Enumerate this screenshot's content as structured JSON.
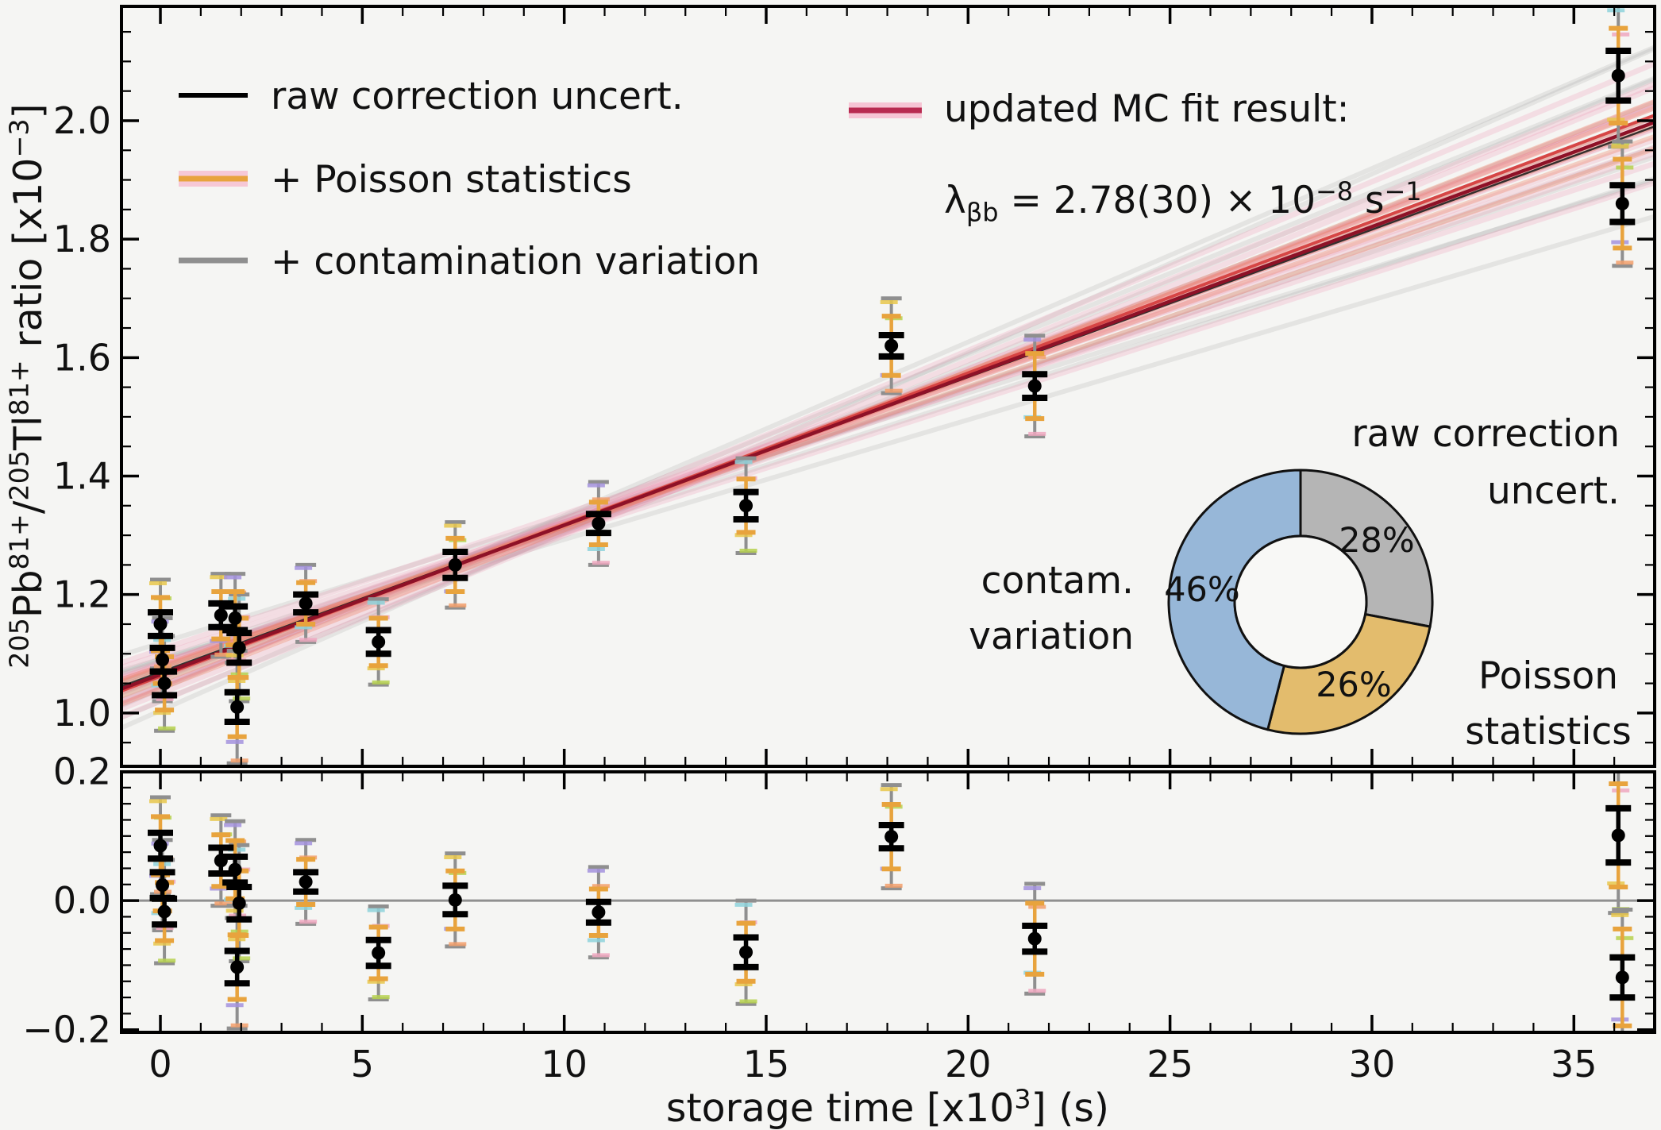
{
  "chart_data": {
    "type": "scatter",
    "title": "",
    "xlabel_parts": [
      {
        "t": "storage time [x10"
      },
      {
        "t": "3",
        "sup": true
      },
      {
        "t": "] (s)"
      }
    ],
    "ylabel_parts": [
      {
        "t": "205",
        "sup": true
      },
      {
        "t": "Pb"
      },
      {
        "t": "81+",
        "sup": true
      },
      {
        "t": "/"
      },
      {
        "t": "205",
        "sup": true
      },
      {
        "t": "Tl"
      },
      {
        "t": "81+",
        "sup": true
      },
      {
        "t": " ratio [x10"
      },
      {
        "t": "−3",
        "sup": true
      },
      {
        "t": "]"
      }
    ],
    "xlim": [
      -0.9635,
      37.0
    ],
    "ylim_main": [
      0.91,
      2.193
    ],
    "ylim_res": [
      -0.204,
      0.1994
    ],
    "x_major_ticks": [
      0,
      5,
      10,
      15,
      20,
      25,
      30,
      35
    ],
    "x_tick_labels": [
      "0",
      "5",
      "10",
      "15",
      "20",
      "25",
      "30",
      "35"
    ],
    "x_minor_step": 1,
    "y_major_ticks_main": [
      1.0,
      1.2,
      1.4,
      1.6,
      1.8,
      2.0
    ],
    "y_tick_labels_main": [
      "1.0",
      "1.2",
      "1.4",
      "1.6",
      "1.8",
      "2.0"
    ],
    "y_minor_step_main": 0.05,
    "y_major_ticks_res": [
      -0.2,
      0.0,
      0.2
    ],
    "y_tick_labels_res": [
      "−0.2",
      "0.0",
      "0.2"
    ],
    "y_minor_step_res": 0.025,
    "grid": "off",
    "fit": {
      "slope": 0.0252,
      "intercept": 1.065,
      "result_value": "2.78(30)",
      "result_units_exp": "× 10⁻⁸ s⁻¹"
    },
    "points": [
      {
        "x": 0.0,
        "y": 1.15,
        "res": 0.085,
        "err_black": 0.02,
        "err_poisson": 0.045,
        "err_contam": 0.075
      },
      {
        "x": 0.05,
        "y": 1.09,
        "res": 0.024,
        "err_black": 0.02,
        "err_poisson": 0.04,
        "err_contam": 0.07
      },
      {
        "x": 0.1,
        "y": 1.05,
        "res": -0.017,
        "err_black": 0.02,
        "err_poisson": 0.045,
        "err_contam": 0.08
      },
      {
        "x": 1.5,
        "y": 1.165,
        "res": 0.062,
        "err_black": 0.02,
        "err_poisson": 0.04,
        "err_contam": 0.07
      },
      {
        "x": 1.85,
        "y": 1.16,
        "res": 0.048,
        "err_black": 0.02,
        "err_poisson": 0.045,
        "err_contam": 0.075
      },
      {
        "x": 1.95,
        "y": 1.11,
        "res": -0.004,
        "err_black": 0.025,
        "err_poisson": 0.05,
        "err_contam": 0.09
      },
      {
        "x": 1.9,
        "y": 1.01,
        "res": -0.103,
        "err_black": 0.025,
        "err_poisson": 0.05,
        "err_contam": 0.095
      },
      {
        "x": 3.6,
        "y": 1.185,
        "res": 0.029,
        "err_black": 0.015,
        "err_poisson": 0.035,
        "err_contam": 0.065
      },
      {
        "x": 5.4,
        "y": 1.12,
        "res": -0.081,
        "err_black": 0.02,
        "err_poisson": 0.04,
        "err_contam": 0.072
      },
      {
        "x": 7.3,
        "y": 1.25,
        "res": 0.001,
        "err_black": 0.022,
        "err_poisson": 0.045,
        "err_contam": 0.072
      },
      {
        "x": 10.85,
        "y": 1.32,
        "res": -0.018,
        "err_black": 0.016,
        "err_poisson": 0.036,
        "err_contam": 0.07
      },
      {
        "x": 14.5,
        "y": 1.35,
        "res": -0.08,
        "err_black": 0.023,
        "err_poisson": 0.045,
        "err_contam": 0.08
      },
      {
        "x": 18.1,
        "y": 1.62,
        "res": 0.099,
        "err_black": 0.018,
        "err_poisson": 0.05,
        "err_contam": 0.08
      },
      {
        "x": 21.65,
        "y": 1.552,
        "res": -0.059,
        "err_black": 0.02,
        "err_poisson": 0.055,
        "err_contam": 0.085
      },
      {
        "x": 36.1,
        "y": 2.076,
        "res": 0.101,
        "err_black": 0.042,
        "err_poisson": 0.08,
        "err_contam": 0.12
      },
      {
        "x": 36.2,
        "y": 1.86,
        "res": -0.119,
        "err_black": 0.031,
        "err_poisson": 0.075,
        "err_contam": 0.105
      }
    ],
    "legend_main": {
      "items": [
        {
          "label": "raw correction uncert.",
          "line_color": "#000000",
          "band_color": null
        },
        {
          "label": "+ Poisson statistics",
          "line_color": "#e8a33d",
          "band_color": "#f6bfd0"
        },
        {
          "label": "+ contamination variation",
          "line_color": "#8f8f8f",
          "band_color": null
        }
      ]
    },
    "legend_fit": {
      "title": "updated MC fit result:",
      "lambda_parts": [
        {
          "t": "λ"
        },
        {
          "t": "βb",
          "sub": true
        },
        {
          "t": " = 2.78(30) × 10"
        },
        {
          "t": "−8",
          "sup": true
        },
        {
          "t": " s"
        },
        {
          "t": "−1",
          "sup": true
        }
      ],
      "line_color": "#b82a50",
      "band_color": "#f6bfd0"
    },
    "donut": {
      "slices": [
        {
          "name": "raw correction uncert.",
          "pct": 28,
          "pct_label": "28%",
          "color": "#b5b5b5",
          "pct_color": "#1a1a1a",
          "fringe_color": "#cdd65f"
        },
        {
          "name": "Poisson statistics",
          "pct": 26,
          "pct_label": "26%",
          "color": "#e3bc6d",
          "pct_color": "#211a04",
          "fringe_color": "#f0913c"
        },
        {
          "name": "contam. variation",
          "pct": 46,
          "pct_label": "46%",
          "color": "#97b7d8",
          "pct_color": "#1f3a70",
          "fringe_color": "#a593de"
        }
      ],
      "annotations": {
        "raw": [
          "raw correction",
          "uncert."
        ],
        "poisson": [
          "Poisson",
          "statistics"
        ],
        "contam": [
          "contam.",
          "variation"
        ]
      }
    },
    "colors": {
      "background": "#f5f5f3",
      "fit_core": "#8e1127",
      "fit_bright": "#d64040",
      "fit_thin_black": "#222222",
      "band_pink": "#ec82a5",
      "band_salmon": "#ee7654",
      "band_gray": "#828282",
      "err_black": "#000000",
      "err_poisson": "#e8a33d",
      "err_contam": "#8f8f8f",
      "zero_line": "#909090",
      "extra_cap_palette": [
        "#e9c84d",
        "#b7d24f",
        "#a593de",
        "#f3a06c",
        "#8fd4dc",
        "#f0a8c0"
      ]
    }
  }
}
